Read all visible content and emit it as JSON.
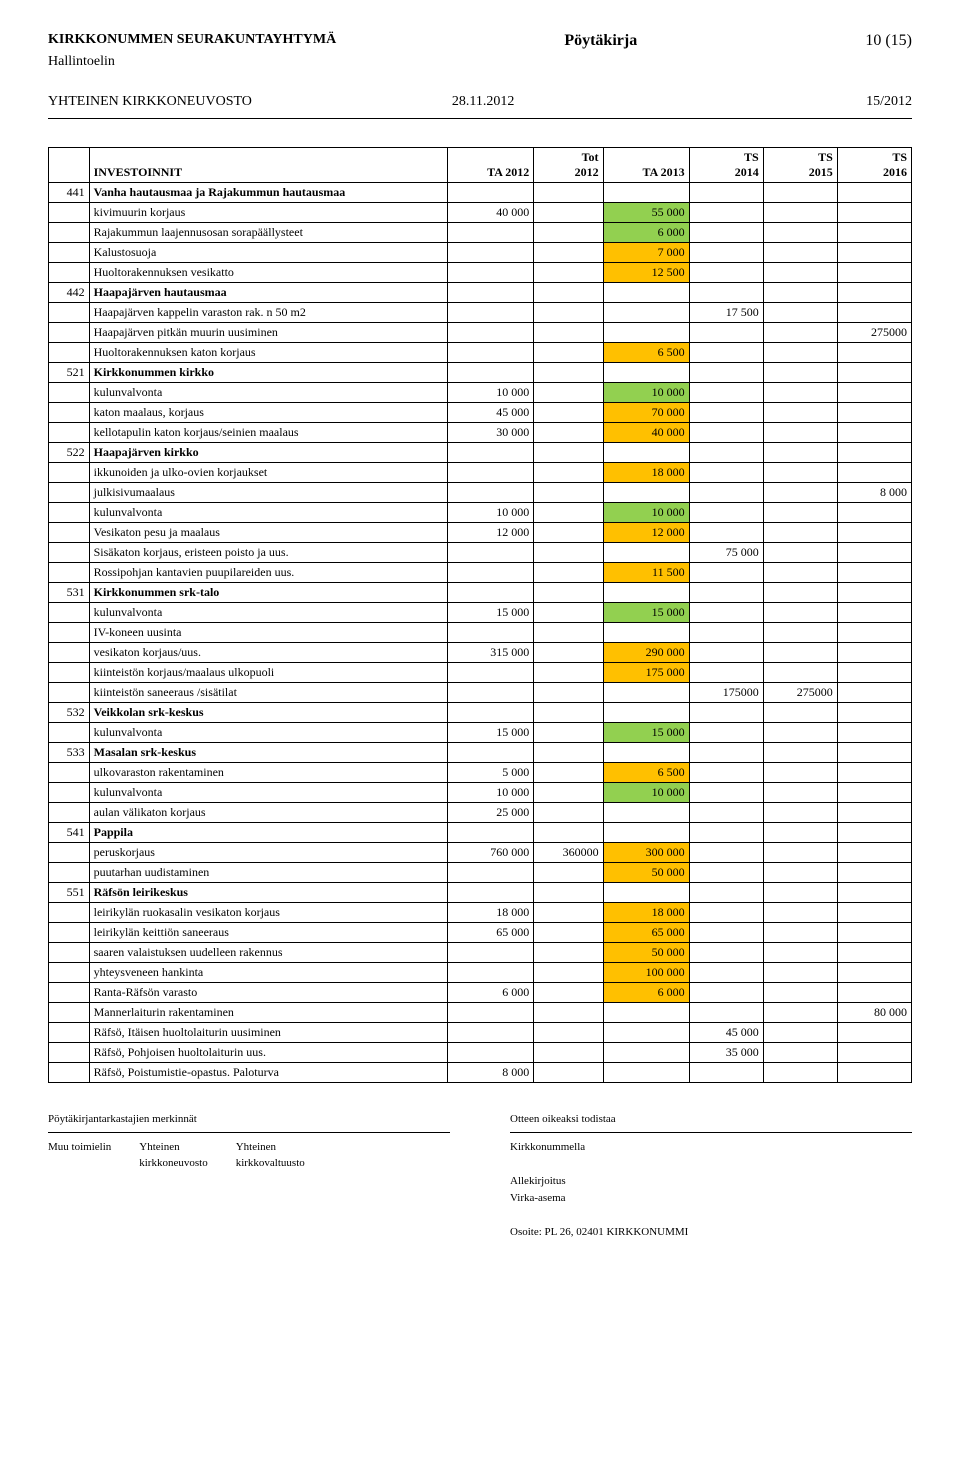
{
  "header": {
    "org": "KIRKKONUMMEN SEURAKUNTAYHTYMÄ",
    "doc_type": "Pöytäkirja",
    "page_no": "10 (15)",
    "body": "Hallintoelin",
    "council": "YHTEINEN KIRKKONEUVOSTO",
    "date": "28.11.2012",
    "session": "15/2012"
  },
  "colors": {
    "green": "#92d050",
    "orange": "#ffc000",
    "background": "#ffffff",
    "border": "#000000"
  },
  "table": {
    "headers": {
      "invest": "INVESTOINNIT",
      "ta2012": "TA 2012",
      "tot2012_l1": "Tot",
      "tot2012_l2": "2012",
      "ta2013": "TA 2013",
      "ts2014_l1": "TS",
      "ts2014_l2": "2014",
      "ts2015_l1": "TS",
      "ts2015_l2": "2015",
      "ts2016_l1": "TS",
      "ts2016_l2": "2016"
    },
    "rows": [
      {
        "code": "441",
        "desc": "Vanha hautausmaa ja Rajakummun hautausmaa",
        "section": true
      },
      {
        "desc": "kivimuurin korjaus",
        "ta2012": "40 000",
        "ta2013": "55 000",
        "ta2013_color": "green"
      },
      {
        "desc": "Rajakummun laajennusosan sorapäällysteet",
        "ta2013": "6 000",
        "ta2013_color": "green"
      },
      {
        "desc": "Kalustosuoja",
        "ta2013": "7 000",
        "ta2013_color": "orange"
      },
      {
        "desc": "Huoltorakennuksen vesikatto",
        "ta2013": "12 500",
        "ta2013_color": "orange"
      },
      {
        "code": "442",
        "desc": "Haapajärven hautausmaa",
        "section": true
      },
      {
        "desc": "Haapajärven kappelin varaston rak. n 50 m2",
        "ts2014": "17 500"
      },
      {
        "desc": "Haapajärven pitkän muurin uusiminen",
        "ts2016": "275000"
      },
      {
        "desc": "Huoltorakennuksen katon korjaus",
        "ta2013": "6 500",
        "ta2013_color": "orange"
      },
      {
        "code": "521",
        "desc": "Kirkkonummen kirkko",
        "section": true
      },
      {
        "desc": "kulunvalvonta",
        "ta2012": "10 000",
        "ta2013": "10 000",
        "ta2013_color": "green"
      },
      {
        "desc": "katon maalaus, korjaus",
        "ta2012": "45 000",
        "ta2013": "70 000",
        "ta2013_color": "orange"
      },
      {
        "desc": "kellotapulin katon korjaus/seinien maalaus",
        "ta2012": "30 000",
        "ta2013": "40 000",
        "ta2013_color": "orange"
      },
      {
        "code": "522",
        "desc": "Haapajärven kirkko",
        "section": true
      },
      {
        "desc": "ikkunoiden ja ulko-ovien korjaukset",
        "ta2013": "18 000",
        "ta2013_color": "orange"
      },
      {
        "desc": "julkisivumaalaus",
        "ts2016": "8 000"
      },
      {
        "desc": "kulunvalvonta",
        "ta2012": "10 000",
        "ta2013": "10 000",
        "ta2013_color": "green"
      },
      {
        "desc": "Vesikaton pesu ja maalaus",
        "ta2012": "12 000",
        "ta2013": "12 000",
        "ta2013_color": "orange"
      },
      {
        "desc": "Sisäkaton korjaus, eristeen poisto ja uus.",
        "ts2014": "75 000"
      },
      {
        "desc": "Rossipohjan kantavien puupilareiden uus.",
        "ta2013": "11 500",
        "ta2013_color": "orange"
      },
      {
        "code": "531",
        "desc": "Kirkkonummen srk-talo",
        "section": true
      },
      {
        "desc": "kulunvalvonta",
        "ta2012": "15 000",
        "ta2013": "15 000",
        "ta2013_color": "green"
      },
      {
        "desc": "IV-koneen uusinta"
      },
      {
        "desc": "vesikaton korjaus/uus.",
        "ta2012": "315 000",
        "ta2013": "290 000",
        "ta2013_color": "orange"
      },
      {
        "desc": "kiinteistön korjaus/maalaus ulkopuoli",
        "ta2013": "175 000",
        "ta2013_color": "orange"
      },
      {
        "desc": "kiinteistön saneeraus /sisätilat",
        "ts2014": "175000",
        "ts2015": "275000"
      },
      {
        "code": "532",
        "desc": "Veikkolan srk-keskus",
        "section": true
      },
      {
        "desc": "kulunvalvonta",
        "ta2012": "15 000",
        "ta2013": "15 000",
        "ta2013_color": "green"
      },
      {
        "code": "533",
        "desc": "Masalan srk-keskus",
        "section": true
      },
      {
        "desc": "ulkovaraston rakentaminen",
        "ta2012": "5 000",
        "ta2013": "6 500",
        "ta2013_color": "orange"
      },
      {
        "desc": "kulunvalvonta",
        "ta2012": "10 000",
        "ta2013": "10 000",
        "ta2013_color": "green"
      },
      {
        "desc": "aulan välikaton korjaus",
        "ta2012": "25 000"
      },
      {
        "code": "541",
        "desc": "Pappila",
        "section": true
      },
      {
        "desc": "peruskorjaus",
        "ta2012": "760 000",
        "tot2012": "360000",
        "ta2013": "300 000",
        "ta2013_color": "orange"
      },
      {
        "desc": "puutarhan uudistaminen",
        "ta2013": "50 000",
        "ta2013_color": "orange"
      },
      {
        "code": "551",
        "desc": "Räfsön leirikeskus",
        "section": true
      },
      {
        "desc": "leirikylän ruokasalin vesikaton korjaus",
        "ta2012": "18 000",
        "ta2013": "18 000",
        "ta2013_color": "orange"
      },
      {
        "desc": "leirikylän keittiön saneeraus",
        "ta2012": "65 000",
        "ta2013": "65 000",
        "ta2013_color": "orange"
      },
      {
        "desc": "saaren valaistuksen uudelleen rakennus",
        "ta2013": "50 000",
        "ta2013_color": "orange"
      },
      {
        "desc": "yhteysveneen hankinta",
        "ta2013": "100 000",
        "ta2013_color": "orange"
      },
      {
        "desc": "Ranta-Räfsön varasto",
        "ta2012": "6 000",
        "ta2013": "6 000",
        "ta2013_color": "orange"
      },
      {
        "desc": "Mannerlaiturin rakentaminen",
        "ts2016": "80 000"
      },
      {
        "desc": "Räfsö, Itäisen huoltolaiturin uusiminen",
        "ts2014": "45 000"
      },
      {
        "desc": "Räfsö, Pohjoisen huoltolaiturin uus.",
        "ts2014": "35 000"
      },
      {
        "desc": "Räfsö, Poistumistie-opastus. Paloturva",
        "ta2012": "8 000"
      }
    ]
  },
  "footer": {
    "left_title": "Pöytäkirjantarkastajien merkinnät",
    "left_col1": "Muu toimielin",
    "left_col2a": "Yhteinen",
    "left_col2b": "kirkkoneuvosto",
    "left_col3a": "Yhteinen",
    "left_col3b": "kirkkovaltuusto",
    "right_title": "Otteen oikeaksi todistaa",
    "right_line1": "Kirkkonummella",
    "right_sig1": "Allekirjoitus",
    "right_sig2": "Virka-asema",
    "addr": "Osoite: PL 26, 02401 KIRKKONUMMI"
  }
}
